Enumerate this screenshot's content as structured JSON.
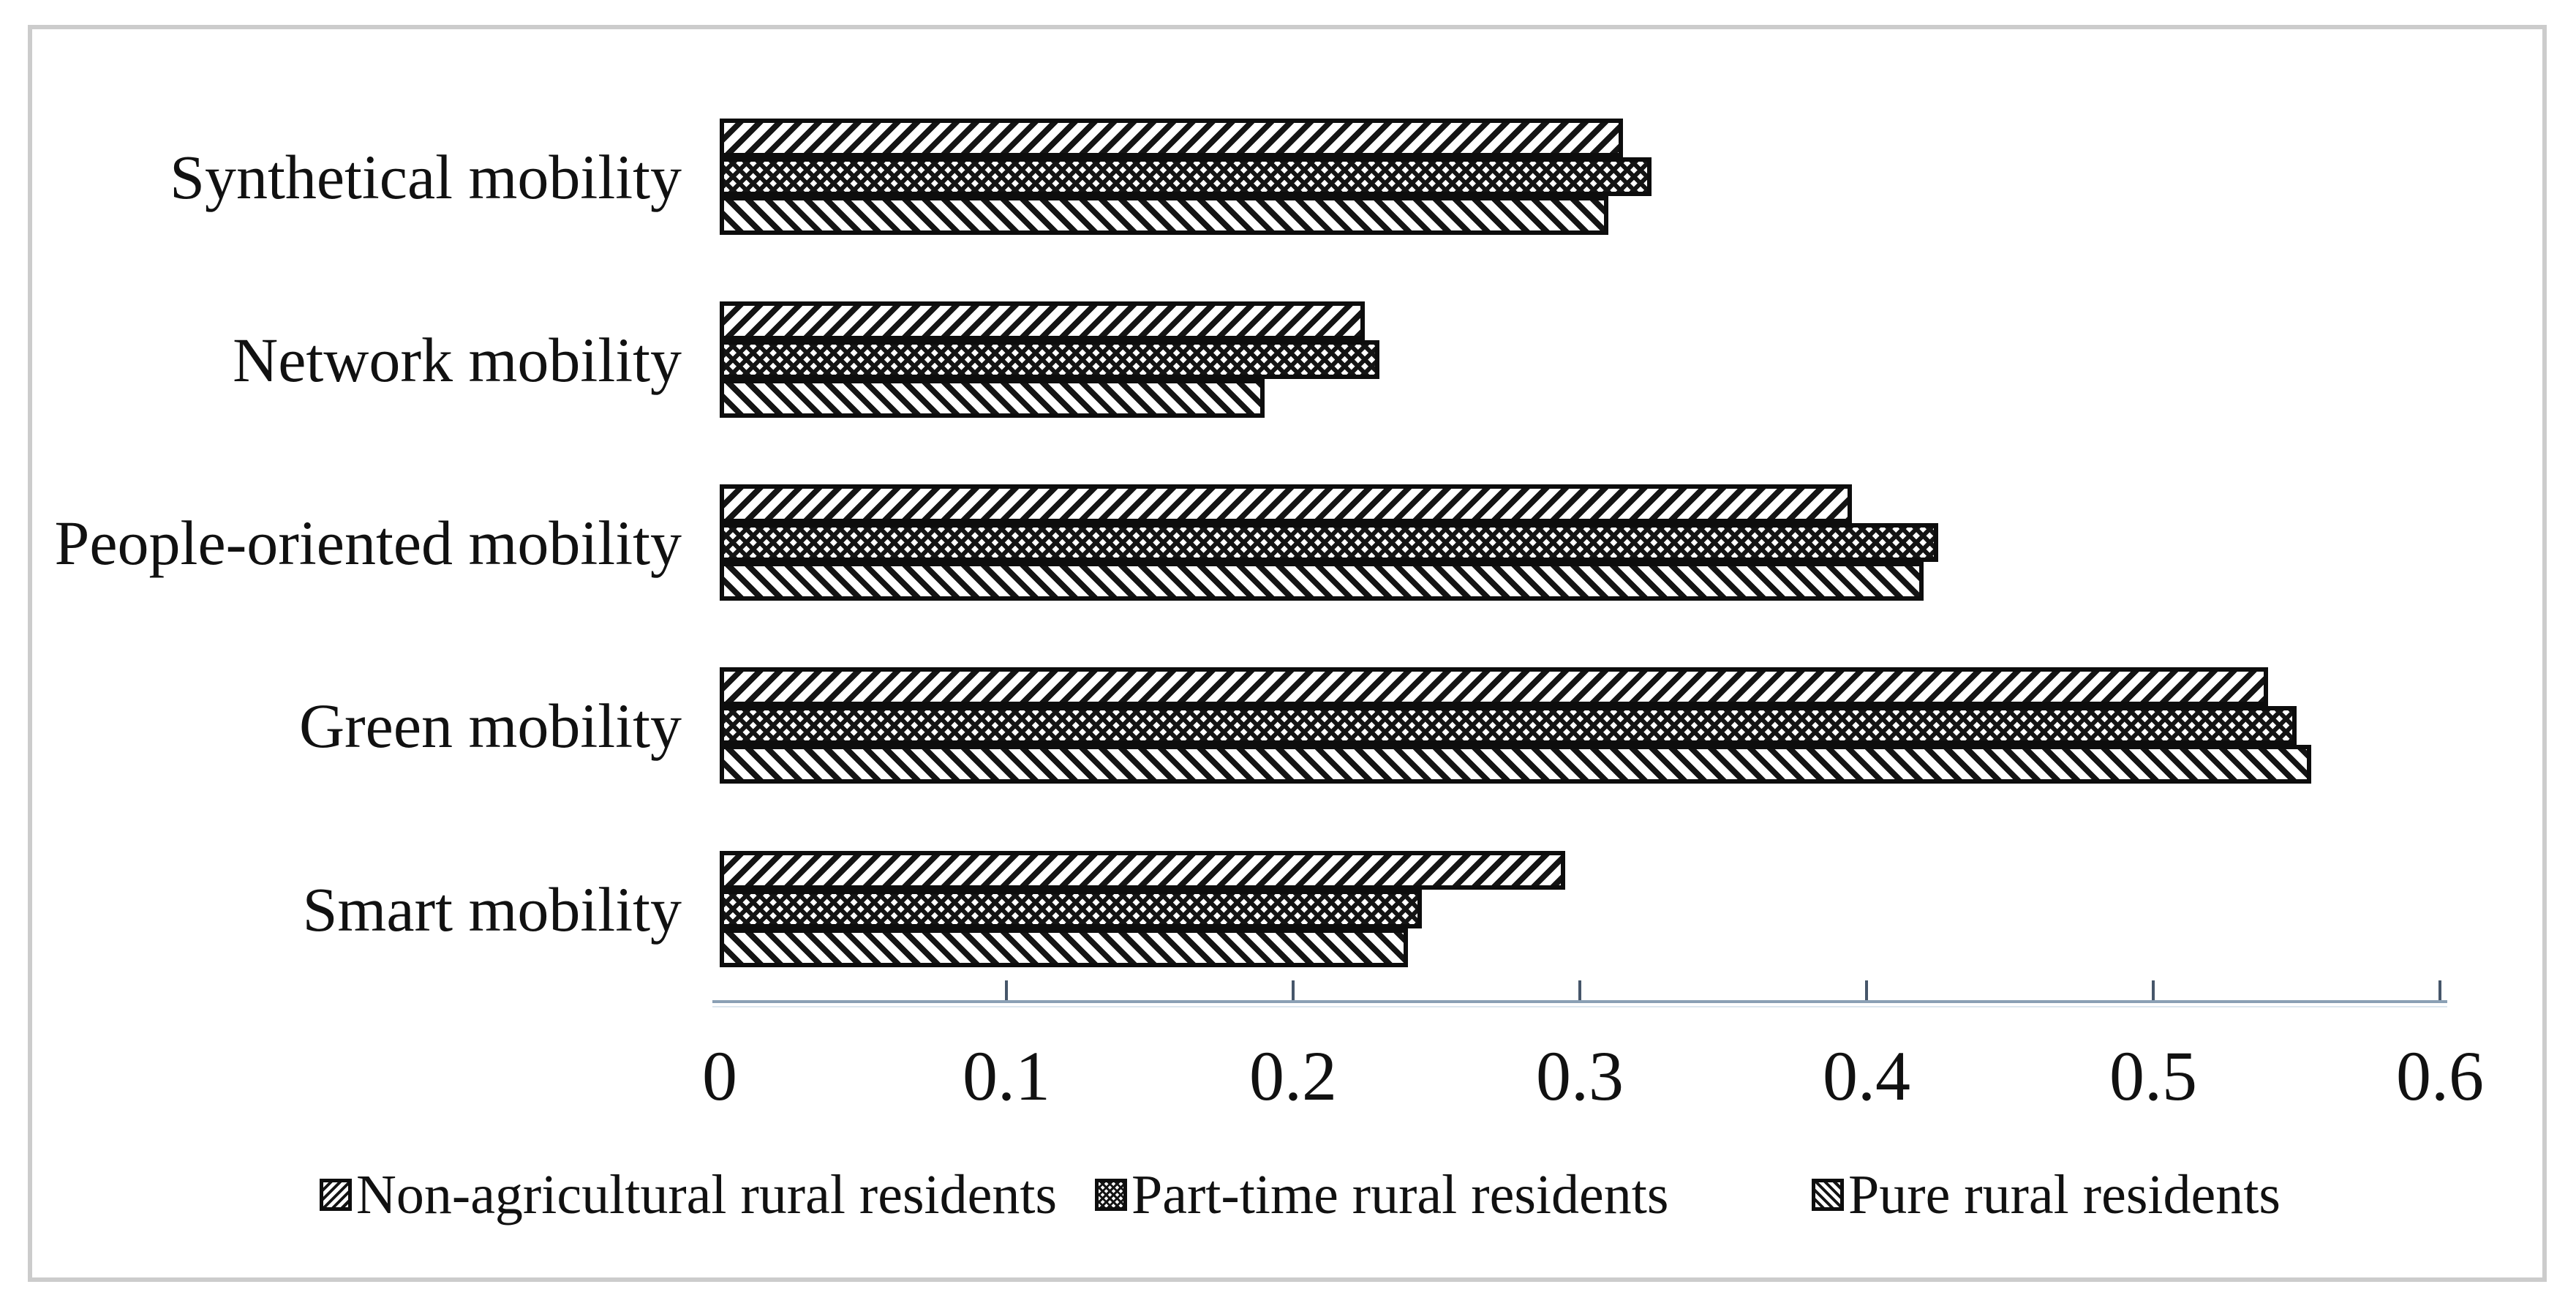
{
  "chart_data": {
    "type": "bar",
    "orientation": "horizontal",
    "categories": [
      "Synthetical mobility",
      "Network mobility",
      "People-oriented mobility",
      "Green mobility",
      "Smart mobility"
    ],
    "series": [
      {
        "name": "Non-agricultural rural residents",
        "pattern": "diagonal-forward-hatch",
        "values": [
          0.315,
          0.225,
          0.395,
          0.54,
          0.295
        ]
      },
      {
        "name": "Part-time rural residents",
        "pattern": "cross-hatch",
        "values": [
          0.325,
          0.23,
          0.425,
          0.55,
          0.245
        ]
      },
      {
        "name": "Pure rural residents",
        "pattern": "diagonal-backward-hatch",
        "values": [
          0.31,
          0.19,
          0.42,
          0.555,
          0.24
        ]
      }
    ],
    "xlim": [
      0,
      0.6
    ],
    "x_tick_labels": [
      "0",
      "0.1",
      "0.2",
      "0.3",
      "0.4",
      "0.5",
      "0.6"
    ],
    "x_tick_values": [
      0,
      0.1,
      0.2,
      0.3,
      0.4,
      0.5,
      0.6
    ],
    "grid": "off",
    "legend_position": "bottom",
    "title": "",
    "xlabel": "",
    "ylabel": ""
  },
  "colors": {
    "bar_fill": "#ffffff",
    "bar_stroke": "#0d0d0d",
    "axis_line": "#8ba0b5",
    "tick_mark": "#46566a",
    "text": "#111111",
    "frame_border": "#cccccc"
  }
}
